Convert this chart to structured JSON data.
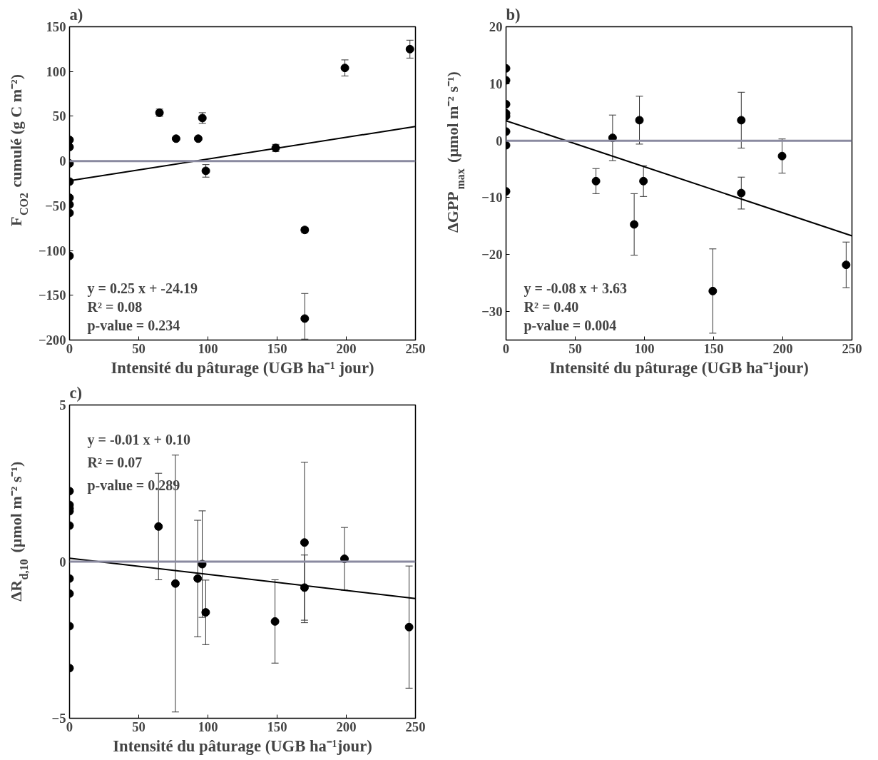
{
  "chart_data": [
    {
      "type": "scatter",
      "title": "a)",
      "xlabel": "Intensité du pâturage (UGB ha⁻¹ jour)",
      "ylabel": "F$_{CO2}$ cumulé (g C m⁻²)",
      "xlim": [
        0,
        250
      ],
      "xticks": [
        0,
        50,
        100,
        150,
        200,
        250
      ],
      "ylim": [
        -200,
        150
      ],
      "yticks": [
        -200,
        -150,
        -100,
        -50,
        0,
        50,
        100,
        150
      ],
      "grid": false,
      "series": [
        {
          "marker": "circle",
          "color": "#000000",
          "x": [
            0,
            0,
            0,
            0,
            0,
            0,
            0,
            0,
            65,
            77,
            93,
            96,
            98.5,
            149,
            170,
            170,
            199,
            246
          ],
          "values": [
            23.6,
            15.6,
            -2.7,
            -23,
            -41,
            -48.6,
            -58,
            -106,
            54,
            25,
            25,
            48,
            -11,
            14.6,
            -77,
            -176,
            104,
            125
          ],
          "errors": [
            null,
            null,
            null,
            null,
            null,
            null,
            null,
            null,
            4,
            null,
            null,
            6,
            7,
            4,
            3,
            [
              -199,
              -148
            ],
            9,
            10
          ]
        },
        {
          "type": "line",
          "color": "#000000",
          "x": [
            0,
            250
          ],
          "values": [
            -22,
            38.6
          ]
        }
      ],
      "ref_lines": [
        {
          "axis": "y",
          "value": 0,
          "color": "#8a8aa0"
        }
      ],
      "annotations": [
        "y = 0.25 x + -24.19",
        "R² = 0.08",
        "p-value = 0.234"
      ]
    },
    {
      "type": "scatter",
      "title": "b)",
      "xlabel": "Intensité du pâturage (UGB ha⁻¹jour)",
      "ylabel": "ΔGPP$_{max}$ (µmol m⁻² s⁻¹)",
      "xlim": [
        0,
        250
      ],
      "xticks": [
        0,
        50,
        100,
        150,
        200,
        250
      ],
      "ylim": [
        -35,
        20
      ],
      "yticks": [
        -30,
        -20,
        -10,
        0,
        10,
        20
      ],
      "grid": false,
      "series": [
        {
          "marker": "circle",
          "color": "#000000",
          "x": [
            0,
            0,
            0,
            0,
            0,
            0,
            0,
            0,
            65,
            77,
            92.6,
            96.4,
            99.3,
            149.4,
            170,
            170,
            199.5,
            245.8
          ],
          "values": [
            12.7,
            10.6,
            6.4,
            4.8,
            4.3,
            1.6,
            -0.8,
            -8.9,
            -7.1,
            0.5,
            -14.7,
            3.6,
            -7.1,
            -26.4,
            3.6,
            -9.2,
            -2.7,
            -21.8
          ],
          "errors": [
            null,
            null,
            null,
            null,
            null,
            null,
            null,
            null,
            2.2,
            4,
            5.4,
            4.2,
            2.7,
            7.4,
            4.9,
            2.8,
            3,
            4
          ]
        },
        {
          "type": "line",
          "color": "#000000",
          "x": [
            0,
            250
          ],
          "values": [
            3.5,
            -16.7
          ]
        }
      ],
      "ref_lines": [
        {
          "axis": "y",
          "value": 0,
          "color": "#8a8aa0"
        }
      ],
      "annotations": [
        "y = -0.08 x + 3.63",
        "R² = 0.40",
        "p-value = 0.004"
      ]
    },
    {
      "type": "scatter",
      "title": "c)",
      "xlabel": "Intensité du pâturage (UGB ha⁻¹jour)",
      "ylabel": "ΔR$_{d,10}$ (µmol m⁻² s⁻¹)",
      "xlim": [
        0,
        250
      ],
      "xticks": [
        0,
        50,
        100,
        150,
        200,
        250
      ],
      "ylim": [
        -5,
        5
      ],
      "yticks": [
        -5,
        0,
        5
      ],
      "grid": false,
      "series": [
        {
          "marker": "circle",
          "color": "#000000",
          "x": [
            0,
            0,
            0,
            0,
            0,
            0,
            0,
            0,
            0,
            64.3,
            76.5,
            92.6,
            95.9,
            98.4,
            148.5,
            169.8,
            169.8,
            198.7,
            245.4
          ],
          "values": [
            2.25,
            1.81,
            1.7,
            1.61,
            1.15,
            -0.54,
            -1.02,
            -2.06,
            -3.4,
            1.12,
            -0.7,
            -0.54,
            -0.08,
            -1.62,
            -1.91,
            0.61,
            -0.83,
            0.09,
            -2.09
          ],
          "errors": [
            null,
            null,
            null,
            null,
            null,
            null,
            null,
            null,
            null,
            1.7,
            [
              -4.8,
              3.4
            ],
            1.86,
            1.7,
            1.03,
            1.33,
            2.56,
            1.04,
            1.0,
            1.95
          ]
        },
        {
          "type": "line",
          "color": "#000000",
          "x": [
            0,
            250
          ],
          "values": [
            0.11,
            -1.18
          ]
        }
      ],
      "ref_lines": [
        {
          "axis": "y",
          "value": 0,
          "color": "#8a8aa0"
        }
      ],
      "annotations": [
        "y = -0.01 x + 0.10",
        "R² = 0.07",
        "p-value = 0.289"
      ]
    }
  ]
}
